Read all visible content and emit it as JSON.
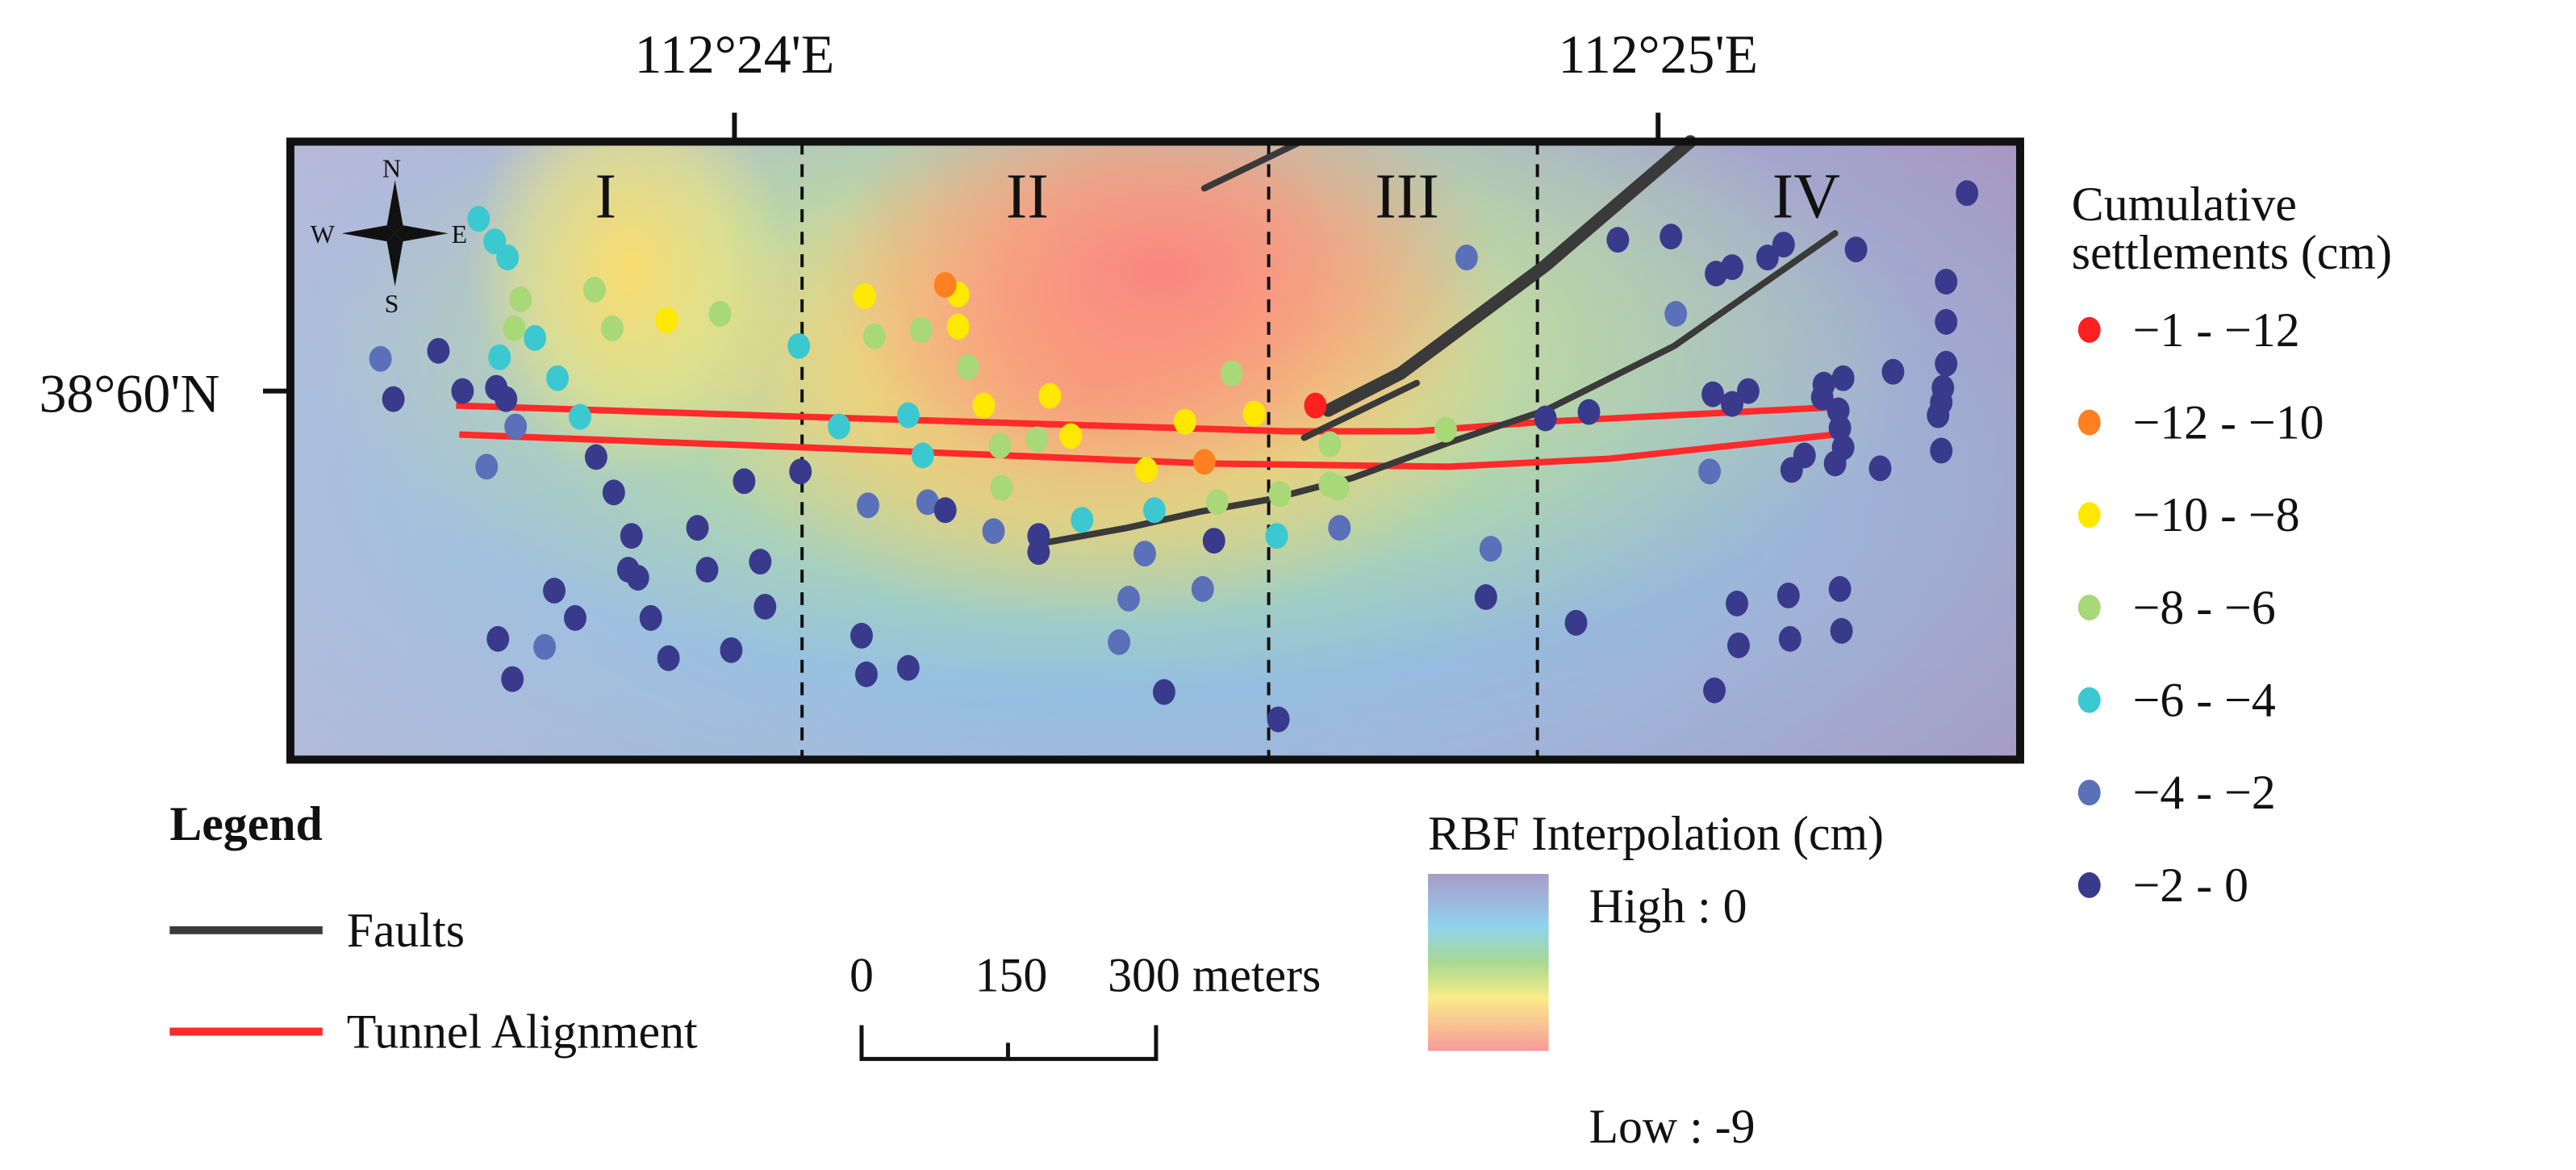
{
  "axes": {
    "lon_labels": [
      "112°24'E",
      "112°25'E"
    ],
    "lat_labels": [
      "38°60'N"
    ]
  },
  "zones": [
    "I",
    "II",
    "III",
    "IV"
  ],
  "compass": {
    "n": "N",
    "s": "S",
    "e": "E",
    "w": "W"
  },
  "legend": {
    "title": "Legend",
    "faults": "Faults",
    "tunnel": "Tunnel Alignment",
    "fault_color": "#3a3a3a",
    "tunnel_color": "#ff2a2a"
  },
  "scale": {
    "labels": [
      "0",
      "150",
      "300 meters"
    ]
  },
  "rbf": {
    "title": "RBF Interpolation (cm)",
    "high": "High : 0",
    "low": "Low : -9"
  },
  "settlements": {
    "title_line1": "Cumulative",
    "title_line2": "settlements (cm)",
    "classes": [
      {
        "key": "r",
        "label": "−1 - −12",
        "color": "#ff2020"
      },
      {
        "key": "o",
        "label": "−12 - −10",
        "color": "#ff8020"
      },
      {
        "key": "y",
        "label": "−10 - −8",
        "color": "#ffe800"
      },
      {
        "key": "g",
        "label": "−8 - −6",
        "color": "#a8d878"
      },
      {
        "key": "c",
        "label": "−6 - −4",
        "color": "#3cc8d0"
      },
      {
        "key": "b",
        "label": "−4 - −2",
        "color": "#5a70b8"
      },
      {
        "key": "d",
        "label": "−2 - 0",
        "color": "#3a3a8c"
      }
    ]
  }
}
